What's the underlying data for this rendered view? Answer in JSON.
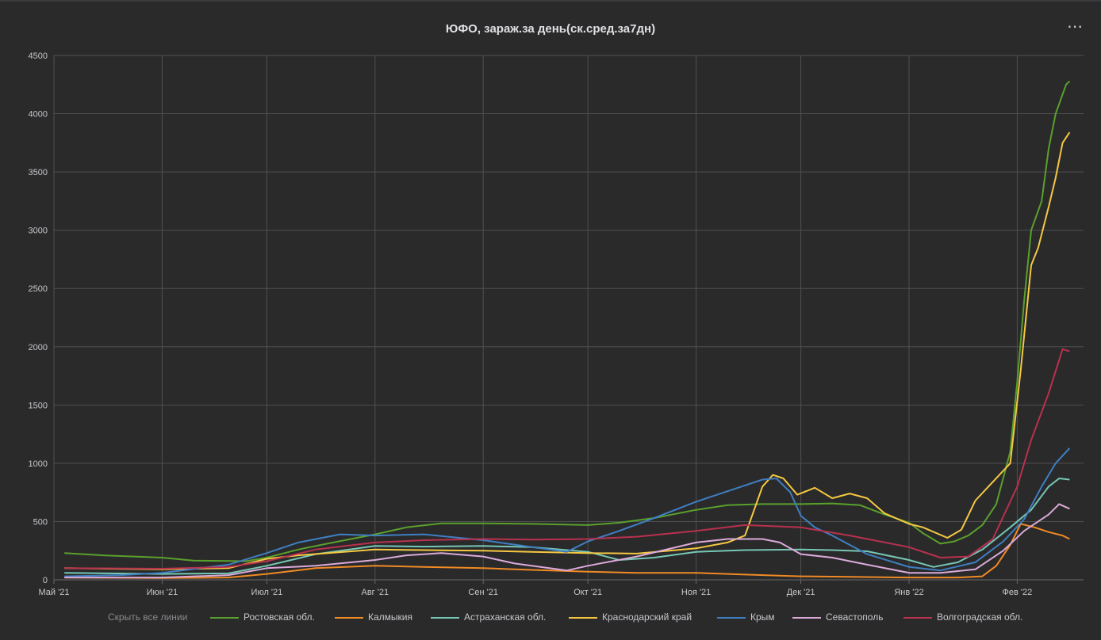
{
  "header": {
    "title": "ЮФО, зараж.за день(ск.сред.за7дн)",
    "menu_icon": "⋯"
  },
  "legend": {
    "hide_all_label": "Скрыть все линии"
  },
  "colors": {
    "background": "#2a2a2b",
    "grid": "#505053",
    "axis_text": "#c8c8cc"
  },
  "chart_data": {
    "type": "line",
    "title": "ЮФО, зараж.за день(ск.сред.за7дн)",
    "xlabel": "",
    "ylabel": "",
    "x_range": [
      "2021-05-01",
      "2022-02-20"
    ],
    "ylim": [
      0,
      4500
    ],
    "y_ticks": [
      0,
      500,
      1000,
      1500,
      2000,
      2500,
      3000,
      3500,
      4000,
      4500
    ],
    "x_ticks": [
      {
        "label": "Май '21",
        "date": "2021-05-01"
      },
      {
        "label": "Июн '21",
        "date": "2021-06-01"
      },
      {
        "label": "Июл '21",
        "date": "2021-07-01"
      },
      {
        "label": "Авг '21",
        "date": "2021-08-01"
      },
      {
        "label": "Сен '21",
        "date": "2021-09-01"
      },
      {
        "label": "Окт '21",
        "date": "2021-10-01"
      },
      {
        "label": "Ноя '21",
        "date": "2021-11-01"
      },
      {
        "label": "Дек '21",
        "date": "2021-12-01"
      },
      {
        "label": "Янв '22",
        "date": "2022-01-01"
      },
      {
        "label": "Фев '22",
        "date": "2022-02-01"
      }
    ],
    "grid": true,
    "legend_position": "bottom",
    "series": [
      {
        "name": "Ростовская обл.",
        "color": "#5aa02c",
        "points": [
          [
            "2021-05-04",
            230
          ],
          [
            "2021-05-15",
            210
          ],
          [
            "2021-06-01",
            190
          ],
          [
            "2021-06-10",
            165
          ],
          [
            "2021-06-25",
            160
          ],
          [
            "2021-07-01",
            190
          ],
          [
            "2021-07-10",
            260
          ],
          [
            "2021-07-20",
            320
          ],
          [
            "2021-08-01",
            390
          ],
          [
            "2021-08-10",
            450
          ],
          [
            "2021-08-20",
            485
          ],
          [
            "2021-09-01",
            485
          ],
          [
            "2021-09-15",
            480
          ],
          [
            "2021-10-01",
            470
          ],
          [
            "2021-10-10",
            490
          ],
          [
            "2021-10-20",
            530
          ],
          [
            "2021-11-01",
            600
          ],
          [
            "2021-11-10",
            640
          ],
          [
            "2021-11-20",
            650
          ],
          [
            "2021-12-01",
            650
          ],
          [
            "2021-12-10",
            655
          ],
          [
            "2021-12-18",
            640
          ],
          [
            "2021-12-25",
            560
          ],
          [
            "2022-01-01",
            490
          ],
          [
            "2022-01-05",
            400
          ],
          [
            "2022-01-10",
            310
          ],
          [
            "2022-01-14",
            330
          ],
          [
            "2022-01-18",
            380
          ],
          [
            "2022-01-22",
            470
          ],
          [
            "2022-01-26",
            650
          ],
          [
            "2022-01-30",
            1100
          ],
          [
            "2022-02-01",
            1700
          ],
          [
            "2022-02-03",
            2400
          ],
          [
            "2022-02-05",
            3000
          ],
          [
            "2022-02-08",
            3250
          ],
          [
            "2022-02-10",
            3700
          ],
          [
            "2022-02-12",
            4000
          ],
          [
            "2022-02-15",
            4250
          ],
          [
            "2022-02-16",
            4280
          ]
        ]
      },
      {
        "name": "Калмыкия",
        "color": "#f08a24",
        "points": [
          [
            "2021-05-04",
            20
          ],
          [
            "2021-06-01",
            15
          ],
          [
            "2021-06-20",
            20
          ],
          [
            "2021-07-01",
            50
          ],
          [
            "2021-07-15",
            100
          ],
          [
            "2021-08-01",
            120
          ],
          [
            "2021-08-15",
            110
          ],
          [
            "2021-09-01",
            100
          ],
          [
            "2021-09-15",
            85
          ],
          [
            "2021-10-01",
            70
          ],
          [
            "2021-10-15",
            60
          ],
          [
            "2021-11-01",
            60
          ],
          [
            "2021-11-15",
            45
          ],
          [
            "2021-12-01",
            30
          ],
          [
            "2021-12-15",
            25
          ],
          [
            "2022-01-01",
            20
          ],
          [
            "2022-01-15",
            20
          ],
          [
            "2022-01-22",
            30
          ],
          [
            "2022-01-26",
            120
          ],
          [
            "2022-01-30",
            300
          ],
          [
            "2022-02-02",
            480
          ],
          [
            "2022-02-06",
            450
          ],
          [
            "2022-02-10",
            410
          ],
          [
            "2022-02-14",
            380
          ],
          [
            "2022-02-16",
            350
          ]
        ]
      },
      {
        "name": "Астраханская обл.",
        "color": "#76c7b4",
        "points": [
          [
            "2021-05-04",
            60
          ],
          [
            "2021-06-01",
            50
          ],
          [
            "2021-06-20",
            55
          ],
          [
            "2021-07-01",
            120
          ],
          [
            "2021-07-15",
            220
          ],
          [
            "2021-08-01",
            290
          ],
          [
            "2021-08-15",
            285
          ],
          [
            "2021-09-01",
            290
          ],
          [
            "2021-09-15",
            280
          ],
          [
            "2021-10-01",
            240
          ],
          [
            "2021-10-10",
            170
          ],
          [
            "2021-10-20",
            190
          ],
          [
            "2021-11-01",
            240
          ],
          [
            "2021-11-15",
            255
          ],
          [
            "2021-12-01",
            260
          ],
          [
            "2021-12-10",
            255
          ],
          [
            "2021-12-20",
            245
          ],
          [
            "2022-01-01",
            170
          ],
          [
            "2022-01-08",
            110
          ],
          [
            "2022-01-15",
            150
          ],
          [
            "2022-01-22",
            260
          ],
          [
            "2022-01-30",
            450
          ],
          [
            "2022-02-05",
            600
          ],
          [
            "2022-02-10",
            800
          ],
          [
            "2022-02-13",
            870
          ],
          [
            "2022-02-16",
            860
          ]
        ]
      },
      {
        "name": "Краснодарский край",
        "color": "#f5c842",
        "points": [
          [
            "2021-05-04",
            100
          ],
          [
            "2021-06-01",
            90
          ],
          [
            "2021-06-20",
            100
          ],
          [
            "2021-07-01",
            180
          ],
          [
            "2021-07-10",
            210
          ],
          [
            "2021-08-01",
            260
          ],
          [
            "2021-08-15",
            255
          ],
          [
            "2021-09-01",
            250
          ],
          [
            "2021-09-15",
            240
          ],
          [
            "2021-10-01",
            230
          ],
          [
            "2021-10-15",
            225
          ],
          [
            "2021-11-01",
            270
          ],
          [
            "2021-11-10",
            320
          ],
          [
            "2021-11-15",
            380
          ],
          [
            "2021-11-20",
            800
          ],
          [
            "2021-11-23",
            900
          ],
          [
            "2021-11-26",
            870
          ],
          [
            "2021-11-30",
            730
          ],
          [
            "2021-12-05",
            790
          ],
          [
            "2021-12-10",
            700
          ],
          [
            "2021-12-15",
            740
          ],
          [
            "2021-12-20",
            700
          ],
          [
            "2021-12-25",
            570
          ],
          [
            "2022-01-01",
            480
          ],
          [
            "2022-01-05",
            450
          ],
          [
            "2022-01-12",
            360
          ],
          [
            "2022-01-16",
            430
          ],
          [
            "2022-01-20",
            680
          ],
          [
            "2022-01-25",
            840
          ],
          [
            "2022-01-30",
            1000
          ],
          [
            "2022-02-02",
            1800
          ],
          [
            "2022-02-05",
            2700
          ],
          [
            "2022-02-07",
            2850
          ],
          [
            "2022-02-10",
            3200
          ],
          [
            "2022-02-12",
            3450
          ],
          [
            "2022-02-14",
            3750
          ],
          [
            "2022-02-16",
            3840
          ]
        ]
      },
      {
        "name": "Крым",
        "color": "#3f7fc1",
        "points": [
          [
            "2021-05-04",
            30
          ],
          [
            "2021-05-20",
            40
          ],
          [
            "2021-06-01",
            60
          ],
          [
            "2021-06-20",
            130
          ],
          [
            "2021-07-01",
            230
          ],
          [
            "2021-07-10",
            320
          ],
          [
            "2021-07-22",
            390
          ],
          [
            "2021-08-01",
            380
          ],
          [
            "2021-08-15",
            390
          ],
          [
            "2021-09-01",
            340
          ],
          [
            "2021-09-15",
            280
          ],
          [
            "2021-09-25",
            240
          ],
          [
            "2021-10-01",
            330
          ],
          [
            "2021-10-10",
            420
          ],
          [
            "2021-10-20",
            530
          ],
          [
            "2021-11-01",
            670
          ],
          [
            "2021-11-10",
            760
          ],
          [
            "2021-11-20",
            860
          ],
          [
            "2021-11-24",
            870
          ],
          [
            "2021-11-28",
            750
          ],
          [
            "2021-12-01",
            550
          ],
          [
            "2021-12-05",
            450
          ],
          [
            "2021-12-10",
            380
          ],
          [
            "2021-12-20",
            220
          ],
          [
            "2022-01-01",
            110
          ],
          [
            "2022-01-10",
            80
          ],
          [
            "2022-01-20",
            150
          ],
          [
            "2022-01-28",
            330
          ],
          [
            "2022-02-03",
            520
          ],
          [
            "2022-02-08",
            800
          ],
          [
            "2022-02-12",
            1000
          ],
          [
            "2022-02-16",
            1130
          ]
        ]
      },
      {
        "name": "Севастополь",
        "color": "#dcaad9",
        "points": [
          [
            "2021-05-04",
            20
          ],
          [
            "2021-06-01",
            20
          ],
          [
            "2021-06-20",
            40
          ],
          [
            "2021-07-01",
            100
          ],
          [
            "2021-07-15",
            120
          ],
          [
            "2021-08-01",
            170
          ],
          [
            "2021-08-10",
            210
          ],
          [
            "2021-08-20",
            230
          ],
          [
            "2021-09-01",
            200
          ],
          [
            "2021-09-10",
            140
          ],
          [
            "2021-09-25",
            80
          ],
          [
            "2021-10-01",
            120
          ],
          [
            "2021-10-15",
            200
          ],
          [
            "2021-11-01",
            320
          ],
          [
            "2021-11-10",
            350
          ],
          [
            "2021-11-20",
            350
          ],
          [
            "2021-11-25",
            320
          ],
          [
            "2021-12-01",
            220
          ],
          [
            "2021-12-10",
            190
          ],
          [
            "2021-12-20",
            130
          ],
          [
            "2022-01-01",
            60
          ],
          [
            "2022-01-10",
            60
          ],
          [
            "2022-01-20",
            90
          ],
          [
            "2022-01-28",
            250
          ],
          [
            "2022-02-03",
            420
          ],
          [
            "2022-02-10",
            560
          ],
          [
            "2022-02-13",
            650
          ],
          [
            "2022-02-16",
            610
          ]
        ]
      },
      {
        "name": "Волгоградская обл.",
        "color": "#b8314f",
        "points": [
          [
            "2021-05-04",
            100
          ],
          [
            "2021-06-01",
            95
          ],
          [
            "2021-06-20",
            110
          ],
          [
            "2021-07-01",
            160
          ],
          [
            "2021-07-15",
            260
          ],
          [
            "2021-08-01",
            320
          ],
          [
            "2021-08-15",
            340
          ],
          [
            "2021-09-01",
            350
          ],
          [
            "2021-09-15",
            345
          ],
          [
            "2021-10-01",
            350
          ],
          [
            "2021-10-15",
            370
          ],
          [
            "2021-11-01",
            420
          ],
          [
            "2021-11-15",
            470
          ],
          [
            "2021-12-01",
            450
          ],
          [
            "2021-12-15",
            380
          ],
          [
            "2022-01-01",
            280
          ],
          [
            "2022-01-10",
            190
          ],
          [
            "2022-01-18",
            200
          ],
          [
            "2022-01-25",
            350
          ],
          [
            "2022-02-01",
            800
          ],
          [
            "2022-02-05",
            1200
          ],
          [
            "2022-02-10",
            1600
          ],
          [
            "2022-02-14",
            1980
          ],
          [
            "2022-02-16",
            1960
          ]
        ]
      }
    ]
  }
}
